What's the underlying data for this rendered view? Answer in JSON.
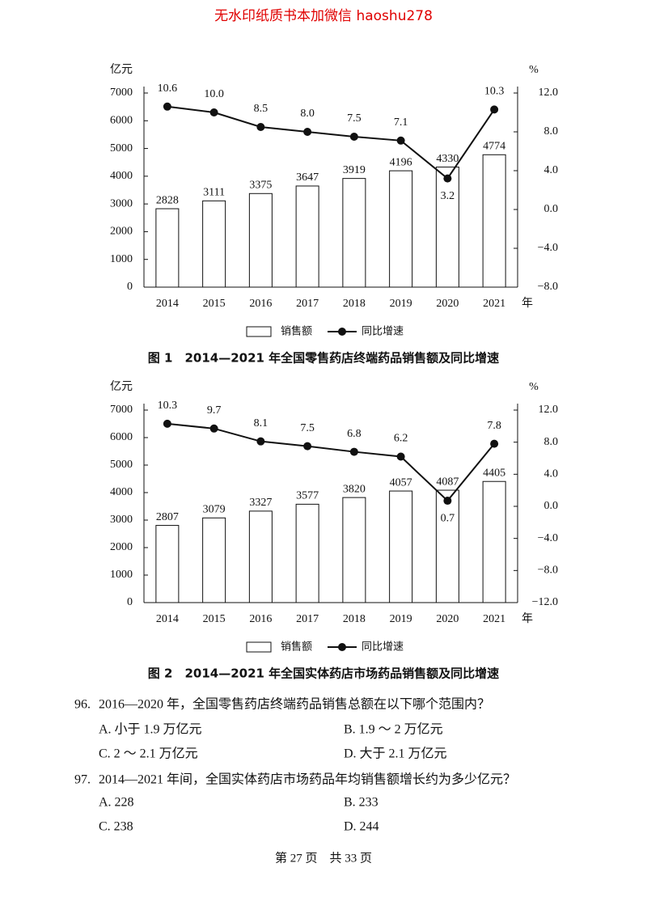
{
  "header": "无水印纸质书本加微信 haoshu278",
  "chart_data": [
    {
      "type": "bar_line",
      "title": "图 1　2014—2021 年全国零售药店终端药品销售额及同比增速",
      "y_label": "亿元",
      "y2_label": "%",
      "x_label": "年",
      "categories": [
        "2014",
        "2015",
        "2016",
        "2017",
        "2018",
        "2019",
        "2020",
        "2021"
      ],
      "series": [
        {
          "name": "销售额",
          "type": "bar",
          "color": "#ffffff",
          "values": [
            2828,
            3111,
            3375,
            3647,
            3919,
            4196,
            4330,
            4774
          ]
        },
        {
          "name": "同比增速",
          "type": "line",
          "axis": "y2",
          "color": "#111111",
          "values": [
            10.6,
            10.0,
            8.5,
            8.0,
            7.5,
            7.1,
            3.2,
            10.3
          ],
          "value_labels": [
            "10.6",
            "10.0",
            "8.5",
            "8.0",
            "7.5",
            "7.1",
            "3.2",
            "10.3"
          ]
        }
      ],
      "ylim": [
        0,
        7000
      ],
      "yticks": [
        0,
        1000,
        2000,
        3000,
        4000,
        5000,
        6000,
        7000
      ],
      "y2lim": [
        -8,
        12
      ],
      "y2ticks": [
        {
          "value": -8,
          "label": "−8.0"
        },
        {
          "value": -4,
          "label": "−4.0"
        },
        {
          "value": 0,
          "label": "0.0"
        },
        {
          "value": 4,
          "label": "4.0"
        },
        {
          "value": 8,
          "label": "8.0"
        },
        {
          "value": 12,
          "label": "12.0"
        }
      ]
    },
    {
      "type": "bar_line",
      "title": "图 2　2014—2021 年全国实体药店市场药品销售额及同比增速",
      "y_label": "亿元",
      "y2_label": "%",
      "x_label": "年",
      "categories": [
        "2014",
        "2015",
        "2016",
        "2017",
        "2018",
        "2019",
        "2020",
        "2021"
      ],
      "series": [
        {
          "name": "销售额",
          "type": "bar",
          "color": "#ffffff",
          "values": [
            2807,
            3079,
            3327,
            3577,
            3820,
            4057,
            4087,
            4405
          ]
        },
        {
          "name": "同比增速",
          "type": "line",
          "axis": "y2",
          "color": "#111111",
          "values": [
            10.3,
            9.7,
            8.1,
            7.5,
            6.8,
            6.2,
            0.7,
            7.8
          ]
        }
      ],
      "ylim": [
        0,
        7000
      ],
      "yticks": [
        0,
        1000,
        2000,
        3000,
        4000,
        5000,
        6000,
        7000
      ],
      "y2lim": [
        -12,
        12
      ],
      "y2ticks": [
        {
          "value": -12,
          "label": "−12.0"
        },
        {
          "value": -8,
          "label": "−8.0"
        },
        {
          "value": -4,
          "label": "−4.0"
        },
        {
          "value": 0,
          "label": "0.0"
        },
        {
          "value": 4,
          "label": "4.0"
        },
        {
          "value": 8,
          "label": "8.0"
        },
        {
          "value": 12,
          "label": "12.0"
        }
      ]
    }
  ],
  "questions": [
    {
      "number": "96.",
      "text": "2016—2020 年，全国零售药店终端药品销售总额在以下哪个范围内？",
      "options": [
        "A. 小于 1.9 万亿元",
        "B. 1.9 ～ 2 万亿元",
        "C. 2 ～ 2.1 万亿元",
        "D. 大于 2.1 万亿元"
      ]
    },
    {
      "number": "97.",
      "text": "2014—2021 年间，全国实体药店市场药品年均销售额增长约为多少亿元？",
      "options": [
        "A. 228",
        "B. 233",
        "C. 238",
        "D. 244"
      ]
    }
  ],
  "footer": "第 27 页　共 33 页"
}
